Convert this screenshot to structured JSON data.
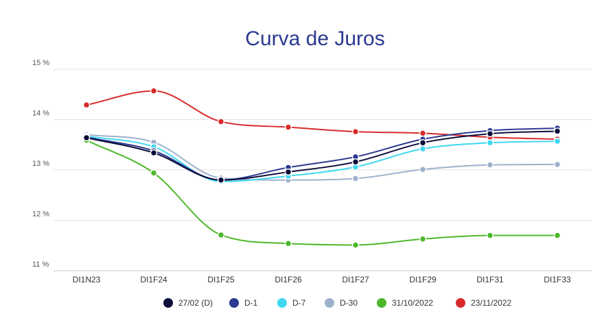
{
  "chart_data": {
    "type": "line",
    "title": "Curva de Juros",
    "xlabel": "",
    "ylabel": "",
    "categories": [
      "DI1N23",
      "DI1F24",
      "DI1F25",
      "DI1F26",
      "DI1F27",
      "DI1F29",
      "DI1F31",
      "DI1F33"
    ],
    "ylim": [
      11,
      15
    ],
    "yticks": [
      11,
      12,
      13,
      14,
      15
    ],
    "ytick_labels": [
      "11 %",
      "12 %",
      "13 %",
      "14 %",
      "15 %"
    ],
    "grid": true,
    "legend_position": "bottom",
    "series": [
      {
        "name": "27/02 (D)",
        "color": "#0d0d3a",
        "values": [
          13.64,
          13.34,
          12.8,
          12.96,
          13.16,
          13.54,
          13.72,
          13.77
        ]
      },
      {
        "name": "D-1",
        "color": "#2b3990",
        "values": [
          13.65,
          13.38,
          12.8,
          13.05,
          13.26,
          13.61,
          13.78,
          13.83
        ]
      },
      {
        "name": "D-7",
        "color": "#3fd8f0",
        "values": [
          13.67,
          13.46,
          12.77,
          12.88,
          13.06,
          13.42,
          13.54,
          13.57
        ]
      },
      {
        "name": "D-30",
        "color": "#9eb1cc",
        "values": [
          13.7,
          13.55,
          12.84,
          12.8,
          12.83,
          13.01,
          13.1,
          13.11
        ]
      },
      {
        "name": "31/10/2022",
        "color": "#4db82a",
        "values": [
          13.59,
          12.94,
          11.71,
          11.54,
          11.51,
          11.63,
          11.7,
          11.7
        ]
      },
      {
        "name": "23/11/2022",
        "color": "#d92b2b",
        "values": [
          14.29,
          14.57,
          13.96,
          13.85,
          13.76,
          13.73,
          13.65,
          13.61
        ]
      }
    ]
  }
}
